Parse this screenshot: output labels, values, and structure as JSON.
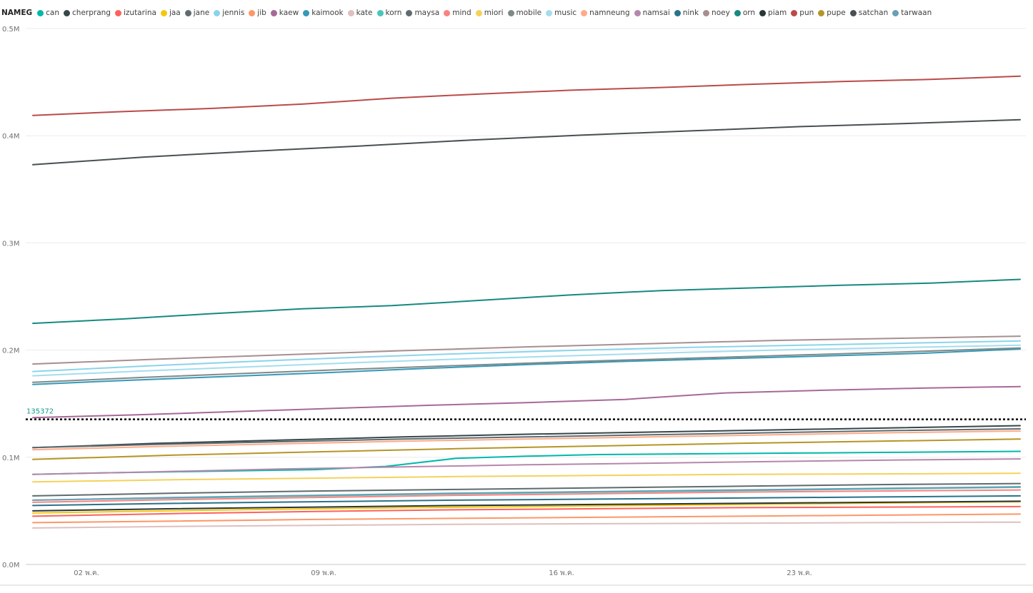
{
  "chart_data": {
    "type": "line",
    "legend_title": "NAMEG",
    "legend_position": "top-left",
    "grid": true,
    "x_ticks": [
      "02 พ.ค.",
      "09 พ.ค.",
      "16 พ.ค.",
      "23 พ.ค."
    ],
    "y_ticks": [
      "0.0M",
      "0.1M",
      "0.2M",
      "0.3M",
      "0.4M",
      "0.5M"
    ],
    "ylim": [
      0,
      500000
    ],
    "x_points": 30,
    "reference_line": {
      "value": 135372,
      "label": "135372",
      "color": "#0f9d8c"
    },
    "series": [
      {
        "name": "can",
        "color": "#01B8AA",
        "values": [
          84000,
          85500,
          86500,
          87500,
          88500,
          91500,
          99000,
          101000,
          102500,
          103000,
          103500,
          104000,
          104500,
          105000,
          105500
        ]
      },
      {
        "name": "cherprang",
        "color": "#374649",
        "values": [
          109000,
          113000,
          116000,
          119000,
          121500,
          123500,
          125500,
          127500,
          129500
        ]
      },
      {
        "name": "izutarina",
        "color": "#FD625E",
        "values": [
          45000,
          47500,
          49500,
          51000,
          52000,
          53000,
          53500,
          54000
        ]
      },
      {
        "name": "jaa",
        "color": "#F2C80F",
        "values": [
          48000,
          50500,
          52500,
          54000,
          55500,
          57000,
          58500
        ]
      },
      {
        "name": "jane",
        "color": "#5F6B6D",
        "values": [
          109000,
          112000,
          114500,
          117000,
          119000,
          121000,
          123000,
          125000,
          126500
        ]
      },
      {
        "name": "jennis",
        "color": "#8AD4EB",
        "values": [
          180000,
          185000,
          189500,
          193500,
          197000,
          200000,
          202500,
          204500,
          206500,
          208500
        ]
      },
      {
        "name": "jib",
        "color": "#FE9666",
        "values": [
          39000,
          40500,
          42000,
          43000,
          44000,
          45000,
          46000,
          47000
        ]
      },
      {
        "name": "kaew",
        "color": "#A66999",
        "values": [
          137000,
          139500,
          142500,
          145500,
          148500,
          151000,
          154000,
          160000,
          162500,
          164500,
          166000
        ]
      },
      {
        "name": "kaimook",
        "color": "#3599B8",
        "values": [
          168000,
          172000,
          175500,
          179000,
          183000,
          186500,
          189500,
          192000,
          194500,
          197000,
          201000
        ]
      },
      {
        "name": "kate",
        "color": "#DFBFBF",
        "values": [
          34000,
          35500,
          36500,
          37500,
          38000,
          38500,
          39000,
          39500
        ]
      },
      {
        "name": "korn",
        "color": "#4AC5BB",
        "values": [
          60000,
          62000,
          64000,
          66000,
          67500,
          69000,
          70500,
          72000
        ]
      },
      {
        "name": "maysa",
        "color": "#5F6B6D",
        "values": [
          64000,
          66500,
          68500,
          70000,
          71500,
          73000,
          74500,
          75500
        ]
      },
      {
        "name": "mind",
        "color": "#FB8281",
        "values": [
          58000,
          60500,
          62500,
          64500,
          66000,
          67500,
          68500,
          69500
        ]
      },
      {
        "name": "miori",
        "color": "#F4D25A",
        "values": [
          77000,
          79000,
          80500,
          82000,
          83000,
          84000,
          84500,
          85000
        ]
      },
      {
        "name": "mobile",
        "color": "#7F898A",
        "values": [
          170000,
          174500,
          178500,
          182500,
          186000,
          189500,
          192500,
          195500,
          198500,
          202000
        ]
      },
      {
        "name": "music",
        "color": "#A4DDEE",
        "values": [
          176000,
          180500,
          184500,
          188500,
          192000,
          195000,
          198000,
          200500,
          202500,
          204500
        ]
      },
      {
        "name": "namneung",
        "color": "#FDAB89",
        "values": [
          107000,
          110000,
          112500,
          115000,
          117000,
          119000,
          121000,
          123000,
          124500
        ]
      },
      {
        "name": "namsai",
        "color": "#B687AC",
        "values": [
          84000,
          86500,
          89000,
          91000,
          93000,
          94500,
          96000,
          97500,
          98500
        ]
      },
      {
        "name": "nink",
        "color": "#28738A",
        "values": [
          55000,
          57000,
          58500,
          60000,
          61000,
          62000,
          63000,
          64000
        ]
      },
      {
        "name": "noey",
        "color": "#A78F8F",
        "values": [
          187000,
          191500,
          195500,
          199500,
          203000,
          206000,
          209000,
          211000,
          213000
        ]
      },
      {
        "name": "orn",
        "color": "#168980",
        "values": [
          225000,
          229000,
          234000,
          238500,
          241500,
          246500,
          251500,
          255500,
          258000,
          260500,
          262500,
          266000
        ]
      },
      {
        "name": "piam",
        "color": "#293537",
        "values": [
          50000,
          52000,
          53500,
          55000,
          56000,
          57000,
          58000,
          59000
        ]
      },
      {
        "name": "pun",
        "color": "#BB4A4A",
        "values": [
          419000,
          422500,
          425500,
          429500,
          435000,
          439000,
          442500,
          445000,
          448000,
          450500,
          452500,
          455500
        ]
      },
      {
        "name": "pupe",
        "color": "#B59525",
        "values": [
          98000,
          102000,
          105000,
          108000,
          110500,
          113000,
          115000,
          117000
        ]
      },
      {
        "name": "satchan",
        "color": "#475052",
        "values": [
          373000,
          380000,
          385500,
          390500,
          396000,
          400500,
          404500,
          408500,
          411500,
          415000
        ]
      },
      {
        "name": "tarwaan",
        "color": "#6A9FB5",
        "values": [
          60000,
          62500,
          64500,
          66500,
          68000,
          69500,
          71000,
          72500
        ]
      }
    ]
  }
}
